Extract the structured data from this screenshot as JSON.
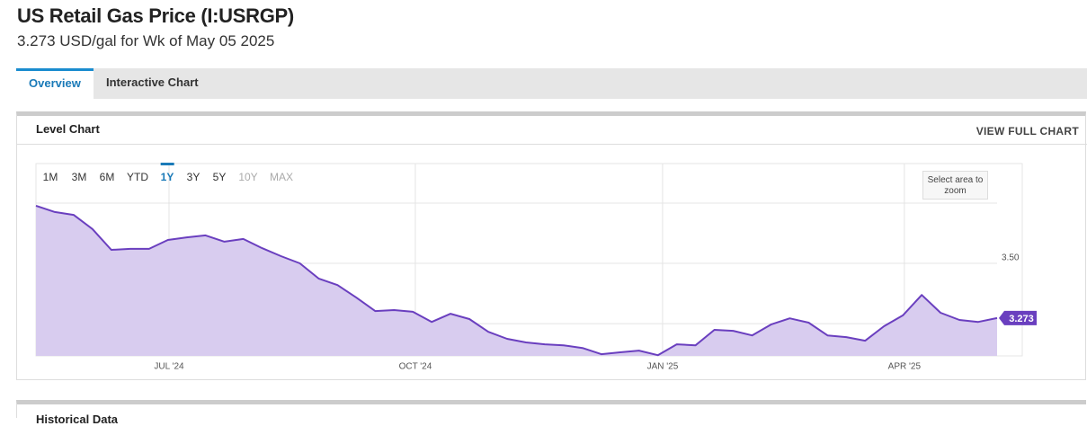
{
  "header": {
    "title": "US Retail Gas Price (I:USRGP)",
    "subtitle": "3.273 USD/gal for Wk of May 05 2025"
  },
  "tabs": [
    "Overview",
    "Interactive Chart"
  ],
  "active_tab": 0,
  "panel": {
    "title": "Level Chart",
    "action": "VIEW FULL CHART",
    "ranges": [
      "1M",
      "3M",
      "6M",
      "YTD",
      "1Y",
      "3Y",
      "5Y",
      "10Y",
      "MAX"
    ],
    "active_range": 4,
    "disabled_ranges": [
      7,
      8
    ],
    "zoom_hint": "Select area to zoom"
  },
  "next_panel": {
    "title": "Historical Data"
  },
  "chart_data": {
    "type": "area",
    "color": "#6a3fbf",
    "fill": "#d8ccef",
    "values": [
      3.739,
      3.713,
      3.701,
      3.642,
      3.556,
      3.56,
      3.56,
      3.597,
      3.608,
      3.616,
      3.59,
      3.601,
      3.563,
      3.53,
      3.5,
      3.437,
      3.41,
      3.358,
      3.302,
      3.306,
      3.299,
      3.257,
      3.291,
      3.269,
      3.216,
      3.187,
      3.172,
      3.164,
      3.16,
      3.149,
      3.123,
      3.131,
      3.138,
      3.119,
      3.164,
      3.16,
      3.224,
      3.22,
      3.201,
      3.246,
      3.272,
      3.254,
      3.201,
      3.194,
      3.179,
      3.239,
      3.284,
      3.369,
      3.295,
      3.265,
      3.257,
      3.273
    ],
    "xlim": [
      0,
      51
    ],
    "xticks": [
      {
        "value": 7.06,
        "label": "JUL '24"
      },
      {
        "value": 20.13,
        "label": "OCT '24"
      },
      {
        "value": 33.25,
        "label": "JAN '25"
      },
      {
        "value": 46.08,
        "label": "APR '25"
      }
    ],
    "ylim": [
      3.116,
      3.914
    ],
    "yticks": [
      {
        "value": 3.5,
        "label": "3.50"
      }
    ],
    "grid_lines": [
      3.25,
      3.5,
      3.75
    ],
    "grid": true
  }
}
